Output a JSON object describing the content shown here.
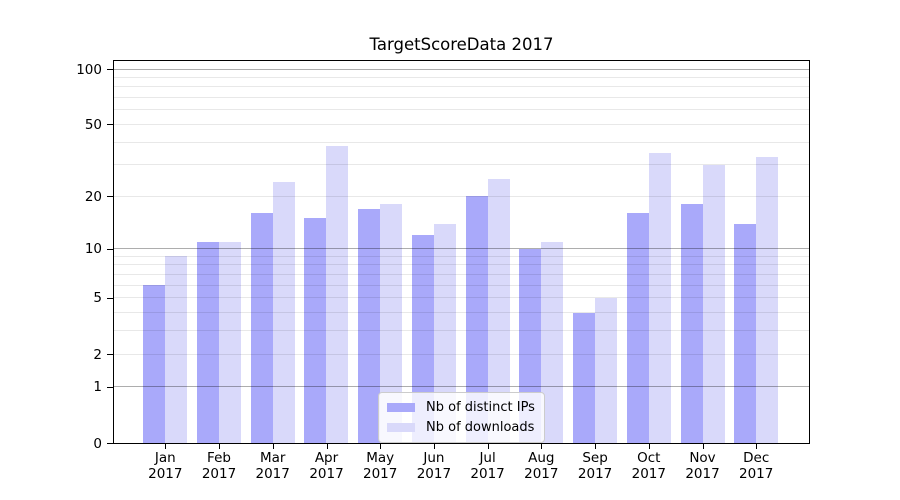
{
  "chart_data": {
    "type": "bar",
    "title": "TargetScoreData 2017",
    "categories": [
      "Jan 2017",
      "Feb 2017",
      "Mar 2017",
      "Apr 2017",
      "May 2017",
      "Jun 2017",
      "Jul 2017",
      "Aug 2017",
      "Sep 2017",
      "Oct 2017",
      "Nov 2017",
      "Dec 2017"
    ],
    "series": [
      {
        "name": "Nb of distinct IPs",
        "color": "#a9a9fa",
        "values": [
          6,
          11,
          16,
          15,
          17,
          12,
          20,
          10,
          4,
          16,
          18,
          14
        ]
      },
      {
        "name": "Nb of downloads",
        "color": "#d9d9fa",
        "values": [
          9,
          11,
          24,
          38,
          18,
          14,
          25,
          11,
          5,
          35,
          30,
          33
        ]
      }
    ],
    "yscale": "log1p",
    "ylim": [
      0,
      114
    ],
    "yticks": [
      0,
      1,
      2,
      5,
      10,
      20,
      50,
      100
    ],
    "grid_major": [
      1,
      10,
      100
    ],
    "grid_minor": [
      2,
      3,
      4,
      5,
      6,
      7,
      8,
      9,
      20,
      30,
      40,
      50,
      60,
      70,
      80,
      90
    ],
    "grid": "horizontal",
    "legend_position": "lower center"
  }
}
